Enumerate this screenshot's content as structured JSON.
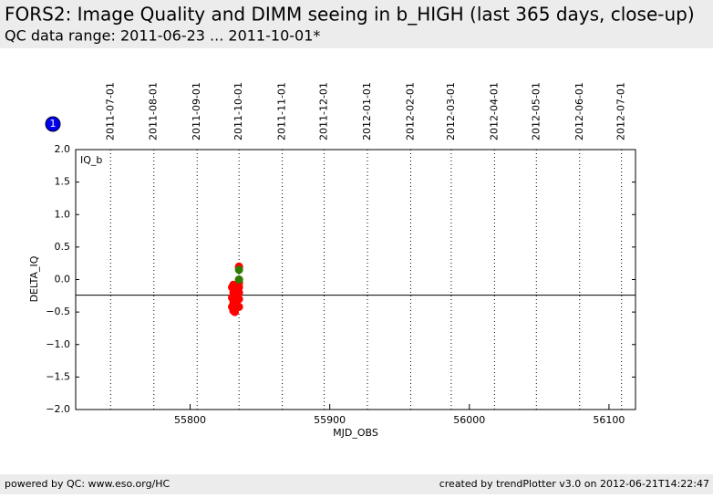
{
  "header": {
    "title": "FORS2: Image Quality and DIMM seeing in b_HIGH (last 365 days, close-up)",
    "subtitle": "QC data range: 2011-06-23 ... 2011-10-01*"
  },
  "badge": "1",
  "chart_data": {
    "type": "scatter",
    "panel_label": "IQ_b",
    "x_label": "MJD_OBS",
    "y_label": "DELTA_IQ",
    "xlim": [
      55718,
      56119
    ],
    "ylim": [
      -2,
      2
    ],
    "xticks": [
      55800,
      55900,
      56000,
      56100
    ],
    "yticks": [
      {
        "value": 2,
        "label": "2.0"
      },
      {
        "value": 1.5,
        "label": "1.5"
      },
      {
        "value": 1,
        "label": "1.0"
      },
      {
        "value": 0.5,
        "label": "0.5"
      },
      {
        "value": 0,
        "label": "0.0"
      },
      {
        "value": -0.5,
        "label": "−0.5"
      },
      {
        "value": -1,
        "label": "−1.0"
      },
      {
        "value": -1.5,
        "label": "−1.5"
      },
      {
        "value": -2,
        "label": "−2.0"
      }
    ],
    "x2ticks": [
      {
        "value": 55743,
        "label": "2011-07-01"
      },
      {
        "value": 55774,
        "label": "2011-08-01"
      },
      {
        "value": 55805,
        "label": "2011-09-01"
      },
      {
        "value": 55835,
        "label": "2011-10-01"
      },
      {
        "value": 55866,
        "label": "2011-11-01"
      },
      {
        "value": 55896,
        "label": "2011-12-01"
      },
      {
        "value": 55927,
        "label": "2012-01-01"
      },
      {
        "value": 55958,
        "label": "2012-02-01"
      },
      {
        "value": 55987,
        "label": "2012-03-01"
      },
      {
        "value": 56018,
        "label": "2012-04-01"
      },
      {
        "value": 56048,
        "label": "2012-05-01"
      },
      {
        "value": 56079,
        "label": "2012-06-01"
      },
      {
        "value": 56109,
        "label": "2012-07-01"
      }
    ],
    "reference_line": -0.24,
    "series": [
      {
        "color": "#ff0000",
        "x": [
          55835,
          55835,
          55835,
          55835,
          55835,
          55835,
          55835,
          55835,
          55831,
          55830,
          55831,
          55830,
          55831,
          55830,
          55831,
          55832,
          55833,
          55832,
          55833
        ],
        "values": [
          0.2,
          0.18,
          0.0,
          -0.05,
          -0.12,
          -0.2,
          -0.3,
          -0.42,
          -0.08,
          -0.12,
          -0.2,
          -0.28,
          -0.35,
          -0.42,
          -0.48,
          -0.5,
          -0.1,
          -0.25,
          -0.38
        ]
      },
      {
        "color": "#2e7d00",
        "x": [
          55835,
          55835
        ],
        "values": [
          0.15,
          0.0
        ]
      }
    ]
  },
  "footer": {
    "left": "powered by QC: www.eso.org/HC",
    "right": "created by trendPlotter v3.0 on 2012-06-21T14:22:47"
  }
}
